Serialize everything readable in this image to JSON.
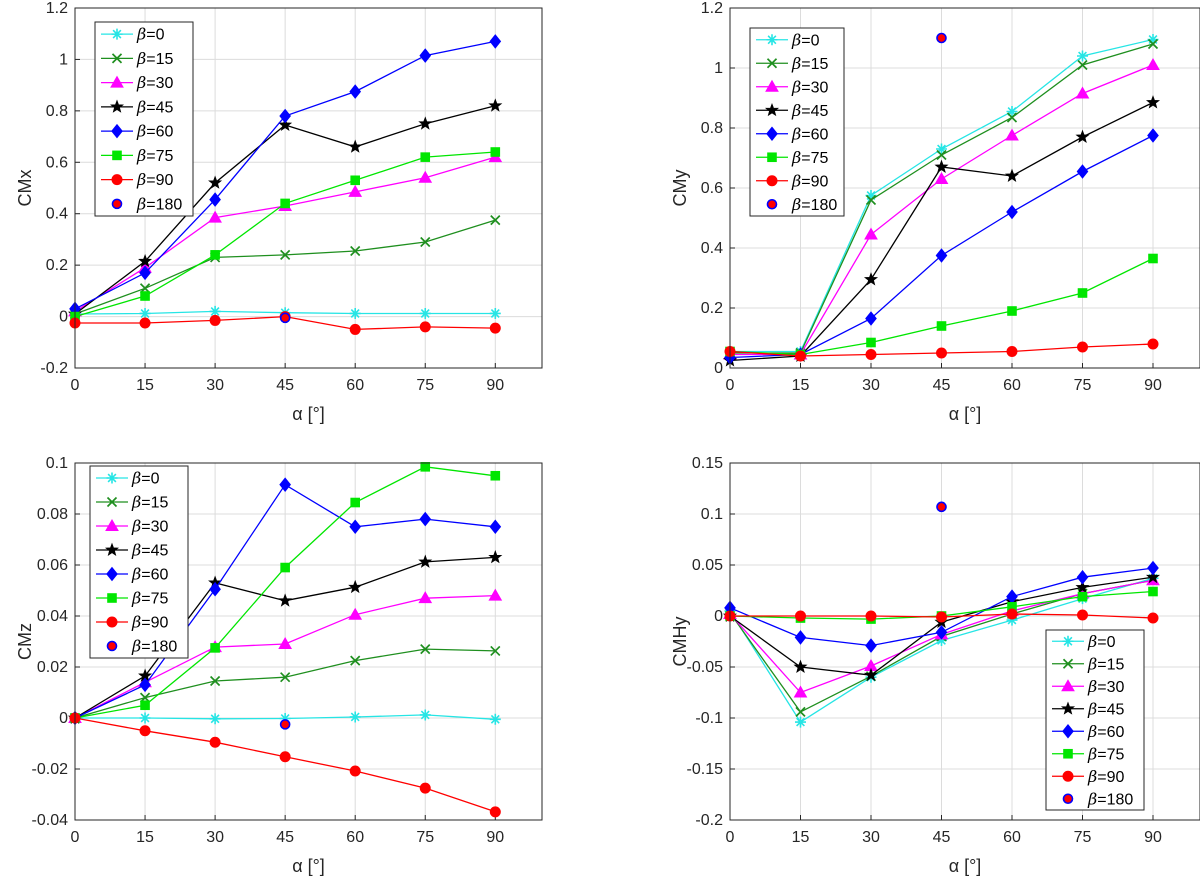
{
  "figure": {
    "markers": {
      "β=0": "asterisk",
      "β=15": "x",
      "β=30": "triangle",
      "β=45": "star",
      "β=60": "diamond",
      "β=75": "square",
      "β=90": "circle",
      "β=180": "circle-outlined"
    },
    "colors": {
      "β=0": "#26e5e5",
      "β=15": "#1f8f1f",
      "β=30": "#ff00ff",
      "β=45": "#000000",
      "β=60": "#0000ff",
      "β=75": "#00e600",
      "β=90": "#ff0000",
      "β=180": "#ff0000",
      "β=180_edge": "#0000ff"
    }
  },
  "chart_data": [
    {
      "type": "line",
      "xlabel": "α [°]",
      "ylabel": "CMx",
      "xlim": [
        0,
        100
      ],
      "ylim": [
        -0.2,
        1.2
      ],
      "xticks": [
        "0",
        "15",
        "30",
        "45",
        "60",
        "75",
        "90"
      ],
      "yticks": [
        "-0.2",
        "0",
        "0.2",
        "0.4",
        "0.6",
        "0.8",
        "1",
        "1.2"
      ],
      "grid": true,
      "legend_position": "top-left",
      "x": [
        0,
        15,
        30,
        45,
        60,
        75,
        90
      ],
      "series": [
        {
          "name": "β=0",
          "values": [
            0.01,
            0.012,
            0.02,
            0.015,
            0.012,
            0.012,
            0.012
          ]
        },
        {
          "name": "β=15",
          "values": [
            0.01,
            0.11,
            0.23,
            0.24,
            0.255,
            0.29,
            0.375
          ]
        },
        {
          "name": "β=30",
          "values": [
            0.02,
            0.19,
            0.385,
            0.43,
            0.485,
            0.54,
            0.62
          ]
        },
        {
          "name": "β=45",
          "values": [
            0.01,
            0.215,
            0.52,
            0.745,
            0.66,
            0.75,
            0.82
          ]
        },
        {
          "name": "β=60",
          "values": [
            0.03,
            0.17,
            0.455,
            0.78,
            0.875,
            1.015,
            1.07
          ]
        },
        {
          "name": "β=75",
          "values": [
            0.0,
            0.08,
            0.24,
            0.44,
            0.53,
            0.62,
            0.64
          ]
        },
        {
          "name": "β=90",
          "values": [
            -0.025,
            -0.025,
            -0.015,
            0.0,
            -0.05,
            -0.04,
            -0.045
          ]
        },
        {
          "name": "β=180",
          "x": [
            45
          ],
          "values": [
            -0.005
          ]
        }
      ]
    },
    {
      "type": "line",
      "xlabel": "α [°]",
      "ylabel": "CMy",
      "xlim": [
        0,
        100
      ],
      "ylim": [
        0,
        1.2
      ],
      "xticks": [
        "0",
        "15",
        "30",
        "45",
        "60",
        "75",
        "90"
      ],
      "yticks": [
        "0",
        "0.2",
        "0.4",
        "0.6",
        "0.8",
        "1",
        "1.2"
      ],
      "grid": true,
      "legend_position": "top-left",
      "x": [
        0,
        15,
        30,
        45,
        60,
        75,
        90
      ],
      "series": [
        {
          "name": "β=0",
          "values": [
            0.055,
            0.055,
            0.575,
            0.73,
            0.855,
            1.04,
            1.095
          ]
        },
        {
          "name": "β=15",
          "values": [
            0.05,
            0.05,
            0.56,
            0.71,
            0.835,
            1.01,
            1.08
          ]
        },
        {
          "name": "β=30",
          "values": [
            0.045,
            0.045,
            0.445,
            0.63,
            0.775,
            0.915,
            1.01
          ]
        },
        {
          "name": "β=45",
          "values": [
            0.025,
            0.04,
            0.295,
            0.67,
            0.64,
            0.77,
            0.885
          ]
        },
        {
          "name": "β=60",
          "values": [
            0.035,
            0.045,
            0.165,
            0.375,
            0.52,
            0.655,
            0.775
          ]
        },
        {
          "name": "β=75",
          "values": [
            0.055,
            0.045,
            0.085,
            0.14,
            0.19,
            0.25,
            0.365
          ]
        },
        {
          "name": "β=90",
          "values": [
            0.055,
            0.04,
            0.045,
            0.05,
            0.055,
            0.07,
            0.08
          ]
        },
        {
          "name": "β=180",
          "x": [
            45
          ],
          "values": [
            1.1
          ]
        }
      ]
    },
    {
      "type": "line",
      "xlabel": "α [°]",
      "ylabel": "CMz",
      "xlim": [
        0,
        100
      ],
      "ylim": [
        -0.04,
        0.1
      ],
      "xticks": [
        "0",
        "15",
        "30",
        "45",
        "60",
        "75",
        "90"
      ],
      "yticks": [
        "-0.04",
        "-0.02",
        "0",
        "0.02",
        "0.04",
        "0.06",
        "0.08",
        "0.1"
      ],
      "grid": true,
      "legend_position": "top-left",
      "x": [
        0,
        15,
        30,
        45,
        60,
        75,
        90
      ],
      "series": [
        {
          "name": "β=0",
          "values": [
            0.0,
            0.0,
            -0.0003,
            -0.0002,
            0.0004,
            0.0012,
            -0.0005
          ]
        },
        {
          "name": "β=15",
          "values": [
            0.0,
            0.008,
            0.0145,
            0.016,
            0.0225,
            0.027,
            0.0263
          ]
        },
        {
          "name": "β=30",
          "values": [
            0.0,
            0.014,
            0.0278,
            0.029,
            0.0405,
            0.047,
            0.048
          ]
        },
        {
          "name": "β=45",
          "values": [
            0.0,
            0.0165,
            0.053,
            0.046,
            0.0513,
            0.0612,
            0.063
          ]
        },
        {
          "name": "β=60",
          "values": [
            0.0,
            0.013,
            0.0505,
            0.0915,
            0.075,
            0.078,
            0.075
          ]
        },
        {
          "name": "β=75",
          "values": [
            0.0,
            0.005,
            0.0275,
            0.059,
            0.0845,
            0.0985,
            0.095
          ]
        },
        {
          "name": "β=90",
          "values": [
            0.0,
            -0.005,
            -0.0095,
            -0.0152,
            -0.0208,
            -0.0275,
            -0.0368
          ]
        },
        {
          "name": "β=180",
          "x": [
            45
          ],
          "values": [
            -0.0025
          ]
        }
      ]
    },
    {
      "type": "line",
      "xlabel": "α [°]",
      "ylabel": "CMHy",
      "xlim": [
        0,
        100
      ],
      "ylim": [
        -0.2,
        0.15
      ],
      "xticks": [
        "0",
        "15",
        "30",
        "45",
        "60",
        "75",
        "90"
      ],
      "yticks": [
        "-0.2",
        "-0.15",
        "-0.1",
        "-0.05",
        "0",
        "0.05",
        "0.1",
        "0.15"
      ],
      "grid": true,
      "legend_position": "bottom-right",
      "x": [
        0,
        15,
        30,
        45,
        60,
        75,
        90
      ],
      "series": [
        {
          "name": "β=0",
          "values": [
            0.005,
            -0.104,
            -0.06,
            -0.024,
            -0.004,
            0.017,
            0.037
          ]
        },
        {
          "name": "β=15",
          "values": [
            0.003,
            -0.094,
            -0.059,
            -0.02,
            0.002,
            0.022,
            0.035
          ]
        },
        {
          "name": "β=30",
          "values": [
            0.002,
            -0.075,
            -0.049,
            -0.018,
            0.005,
            0.022,
            0.035
          ]
        },
        {
          "name": "β=45",
          "values": [
            0.0,
            -0.05,
            -0.058,
            -0.006,
            0.014,
            0.028,
            0.038
          ]
        },
        {
          "name": "β=60",
          "values": [
            0.008,
            -0.021,
            -0.029,
            -0.016,
            0.019,
            0.038,
            0.047
          ]
        },
        {
          "name": "β=75",
          "values": [
            0.0,
            -0.002,
            -0.003,
            0.0,
            0.009,
            0.019,
            0.024
          ]
        },
        {
          "name": "β=90",
          "values": [
            0.0,
            0.0,
            0.0,
            -0.001,
            0.002,
            0.001,
            -0.002
          ]
        },
        {
          "name": "β=180",
          "x": [
            45
          ],
          "values": [
            0.107
          ]
        }
      ]
    }
  ]
}
